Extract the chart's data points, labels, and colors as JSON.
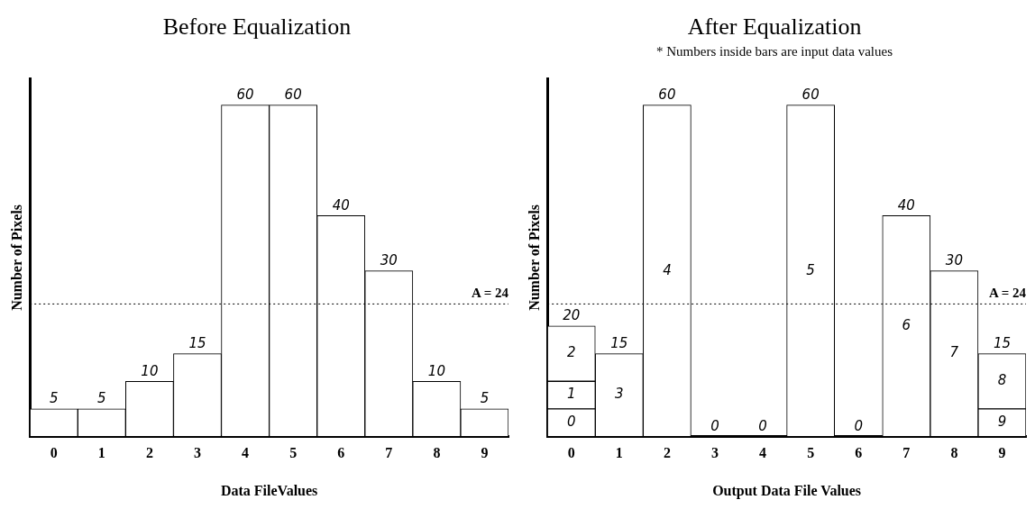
{
  "chart_data": [
    {
      "type": "bar",
      "title": "Before Equalization",
      "xlabel": "Data FileValues",
      "ylabel": "Number of Pixels",
      "categories": [
        "0",
        "1",
        "2",
        "3",
        "4",
        "5",
        "6",
        "7",
        "8",
        "9"
      ],
      "values": [
        5,
        5,
        10,
        15,
        60,
        60,
        40,
        30,
        10,
        5
      ],
      "color": "#ffffff",
      "data_labels": true,
      "tick_labels": "x",
      "ref_lines": [
        {
          "axis": "y",
          "value": 24,
          "label": "A = 24",
          "color": "#000000",
          "line_style": "dotted"
        }
      ]
    },
    {
      "type": "bar",
      "title": "After Equalization",
      "subtitle": "* Numbers inside bars are input data values",
      "xlabel": "Output Data File Values",
      "ylabel": "Number of Pixels",
      "categories": [
        "0",
        "1",
        "2",
        "3",
        "4",
        "5",
        "6",
        "7",
        "8",
        "9"
      ],
      "stacked": true,
      "tick_labels": "x",
      "series": [
        {
          "name": "0",
          "color": "#ffffff",
          "values": [
            5,
            null,
            null,
            null,
            null,
            null,
            null,
            null,
            null,
            null
          ]
        },
        {
          "name": "1",
          "color": "#ffffff",
          "values": [
            5,
            null,
            null,
            null,
            null,
            null,
            null,
            null,
            null,
            null
          ]
        },
        {
          "name": "2",
          "color": "#ffffff",
          "values": [
            10,
            null,
            null,
            null,
            null,
            null,
            null,
            null,
            null,
            null
          ]
        },
        {
          "name": "3",
          "color": "#ffffff",
          "values": [
            null,
            15,
            null,
            null,
            null,
            null,
            null,
            null,
            null,
            null
          ],
          "value_labels": [
            null,
            "15",
            null,
            null,
            null,
            null,
            null,
            null,
            null,
            null
          ]
        },
        {
          "name": "4",
          "color": "#ffffff",
          "values": [
            null,
            null,
            60,
            null,
            null,
            null,
            null,
            null,
            null,
            null
          ],
          "value_labels": [
            null,
            null,
            "60",
            null,
            null,
            null,
            null,
            null,
            null,
            null
          ]
        },
        {
          "name": "5",
          "color": "#ffffff",
          "values": [
            null,
            null,
            null,
            null,
            null,
            60,
            null,
            null,
            null,
            null
          ],
          "value_labels": [
            null,
            null,
            null,
            null,
            null,
            "60",
            null,
            null,
            null,
            null
          ]
        },
        {
          "name": "6",
          "color": "#ffffff",
          "values": [
            null,
            null,
            null,
            null,
            null,
            null,
            null,
            40,
            null,
            null
          ],
          "value_labels": [
            null,
            null,
            null,
            null,
            null,
            null,
            null,
            "40",
            null,
            null
          ]
        },
        {
          "name": "7",
          "color": "#ffffff",
          "values": [
            null,
            null,
            null,
            null,
            null,
            null,
            null,
            null,
            30,
            null
          ],
          "value_labels": [
            null,
            null,
            null,
            null,
            null,
            null,
            null,
            null,
            "30",
            null
          ]
        },
        {
          "name": "9",
          "color": "#ffffff",
          "values": [
            null,
            null,
            null,
            null,
            null,
            null,
            null,
            null,
            null,
            5
          ]
        },
        {
          "name": "8",
          "color": "#ffffff",
          "values": [
            null,
            null,
            null,
            null,
            null,
            null,
            null,
            null,
            null,
            10
          ]
        }
      ],
      "totals": [
        "20",
        null,
        null,
        "0",
        "0",
        null,
        "0",
        null,
        null,
        "15"
      ],
      "ref_lines": [
        {
          "axis": "y",
          "value": 24,
          "label": "A = 24",
          "color": "#000000",
          "line_style": "dotted"
        }
      ]
    }
  ]
}
